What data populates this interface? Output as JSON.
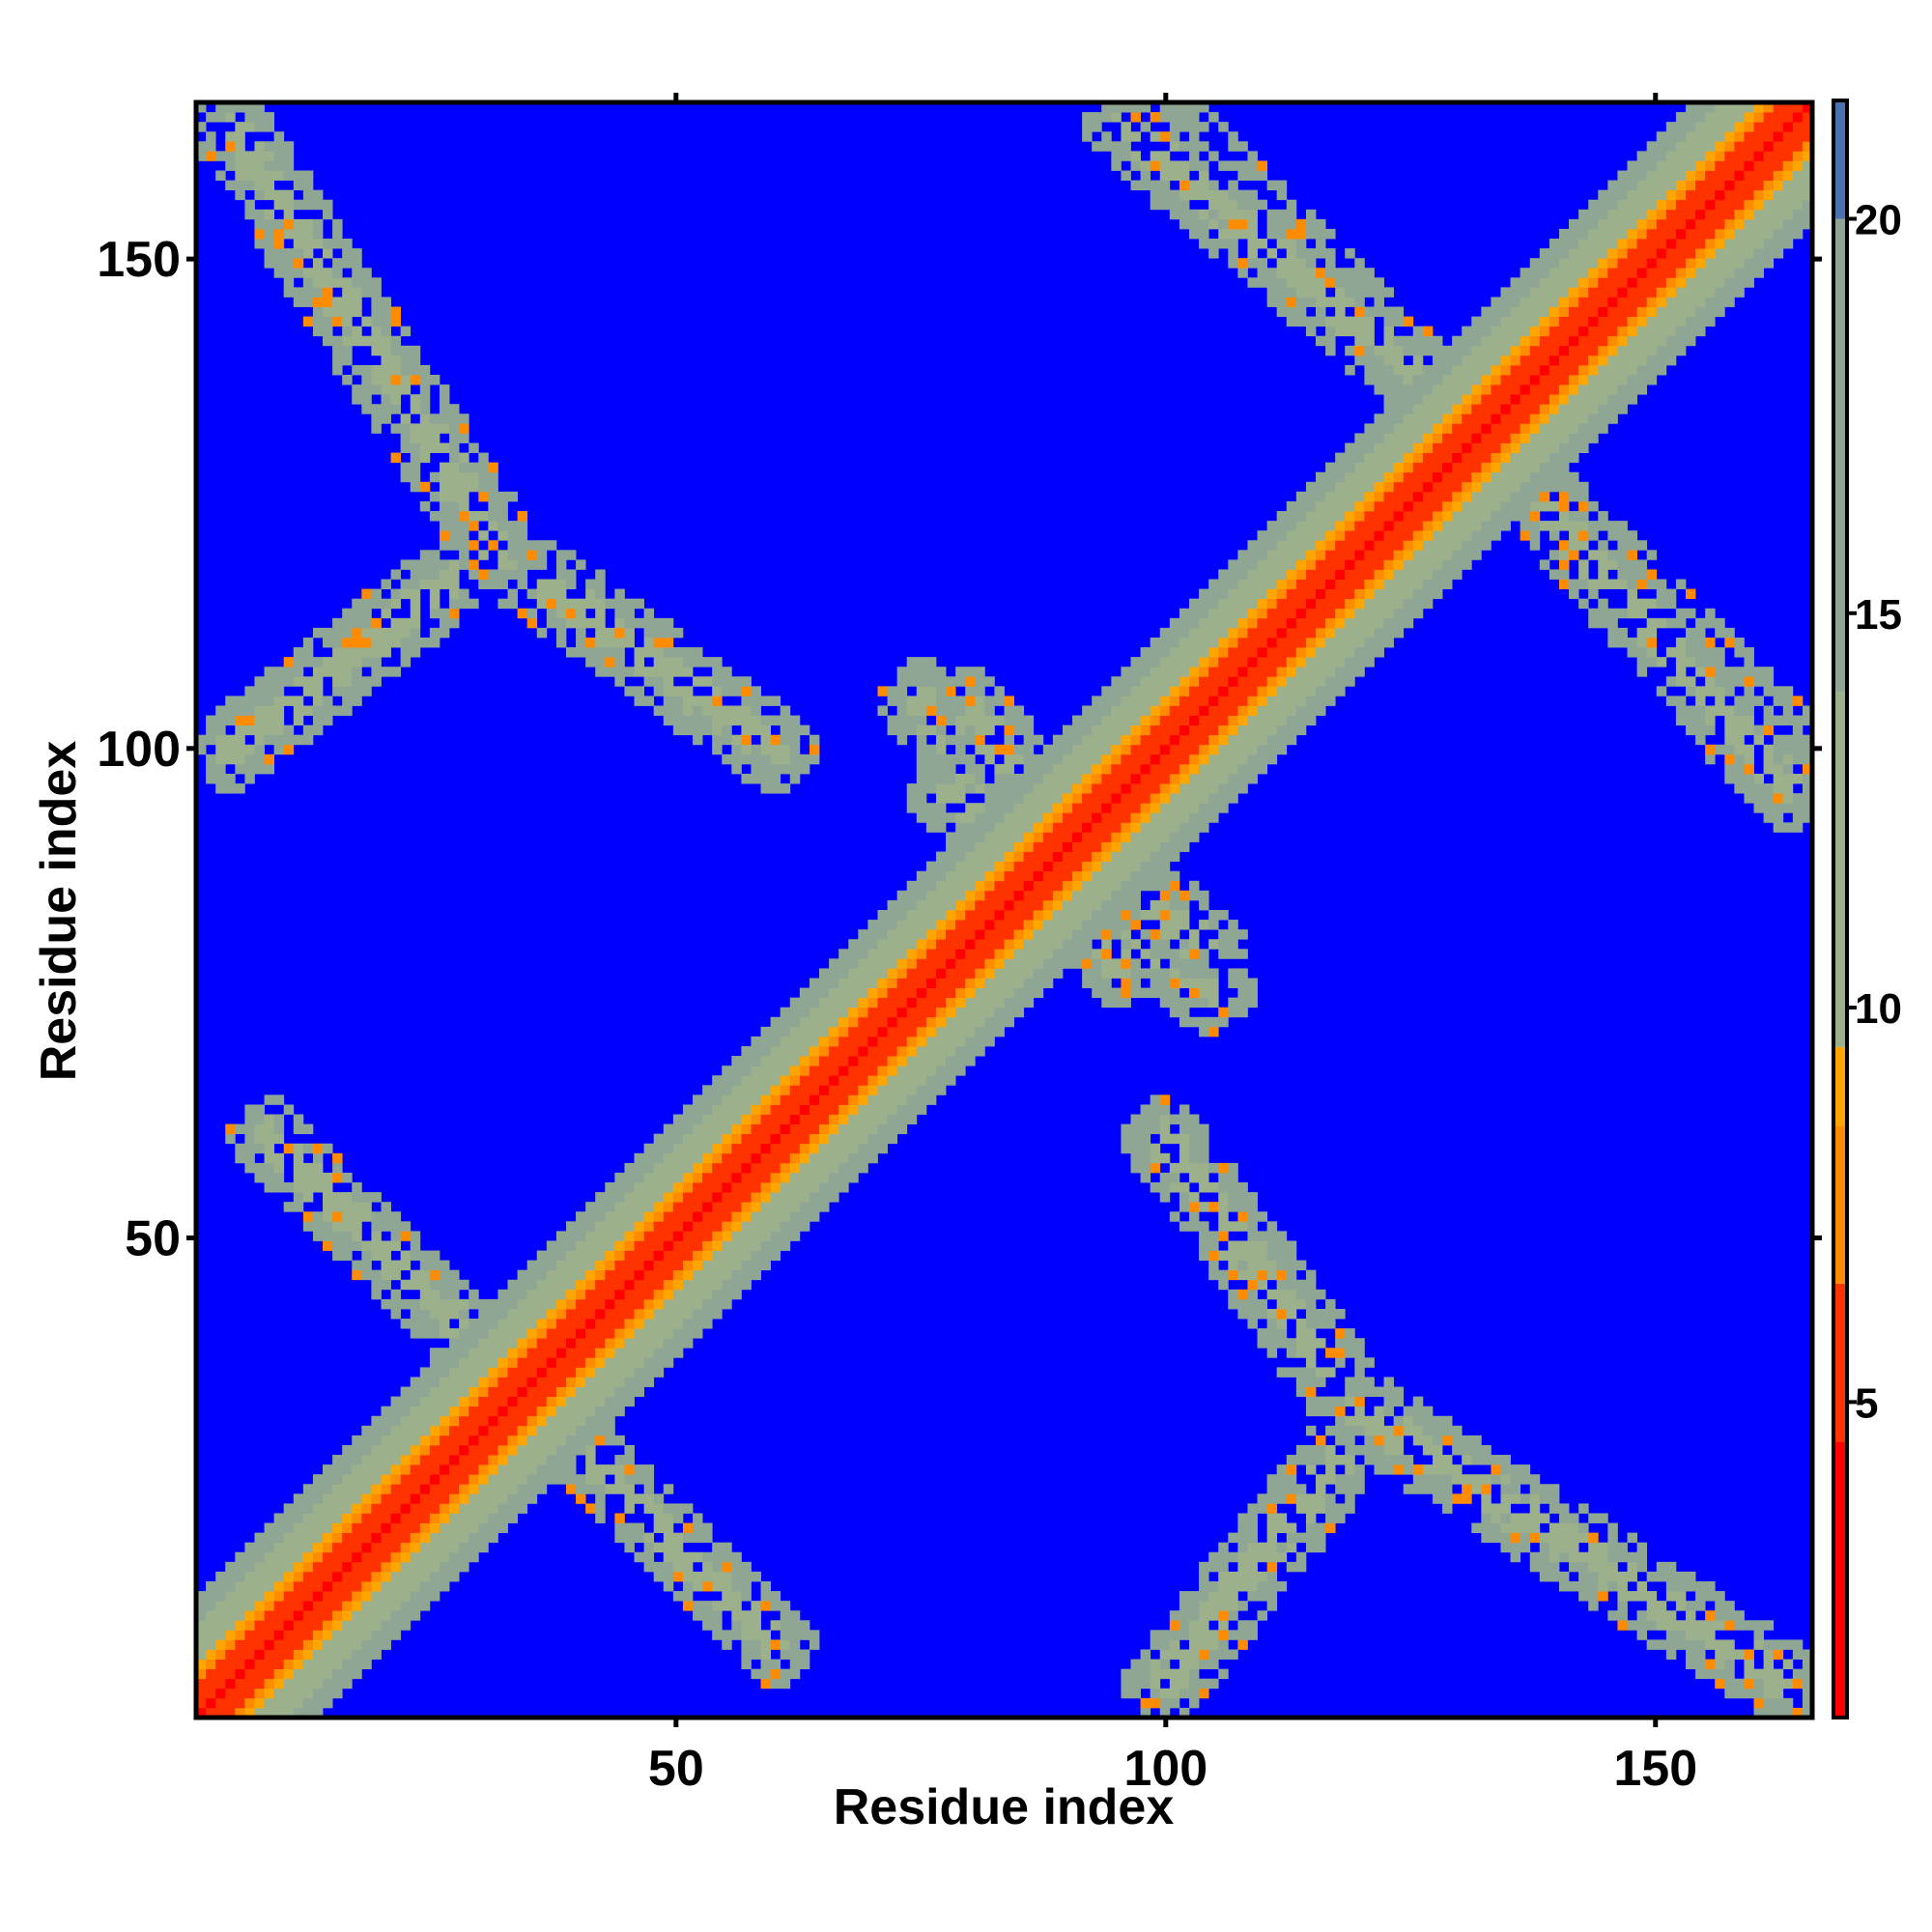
{
  "chart_data": {
    "type": "heatmap",
    "title": "",
    "xlabel": "Residue index",
    "ylabel": "Residue index",
    "n_residues": 166,
    "xlim": [
      1,
      166
    ],
    "ylim": [
      1,
      166
    ],
    "x_ticks": [
      50,
      100,
      150
    ],
    "y_ticks": [
      50,
      100,
      150
    ],
    "x_tick_labels": [
      "50",
      "100",
      "150"
    ],
    "y_tick_labels": [
      "50",
      "100",
      "150"
    ],
    "colorbar": {
      "range": [
        1,
        21.5
      ],
      "ticks": [
        5,
        10,
        15,
        20
      ],
      "tick_labels": [
        "5",
        "10",
        "15",
        "20"
      ]
    },
    "color_scale": [
      {
        "value": 1,
        "color": "#ff0000"
      },
      {
        "value": 4.5,
        "color": "#ff3300"
      },
      {
        "value": 6.5,
        "color": "#ff8c00"
      },
      {
        "value": 8.5,
        "color": "#ffa500"
      },
      {
        "value": 9.5,
        "color": "#9db08c"
      },
      {
        "value": 14,
        "color": "#8fa694"
      },
      {
        "value": 20,
        "color": "#4a72b0"
      },
      {
        "value": 21.5,
        "color": "#0000ff"
      }
    ],
    "background_color": "#0000ff",
    "grid": false,
    "description_of_values": "Pairwise C-alpha distance map; near-diagonal values ~4-8, off-diagonal contact bands ~8-15, remainder >= 21"
  }
}
